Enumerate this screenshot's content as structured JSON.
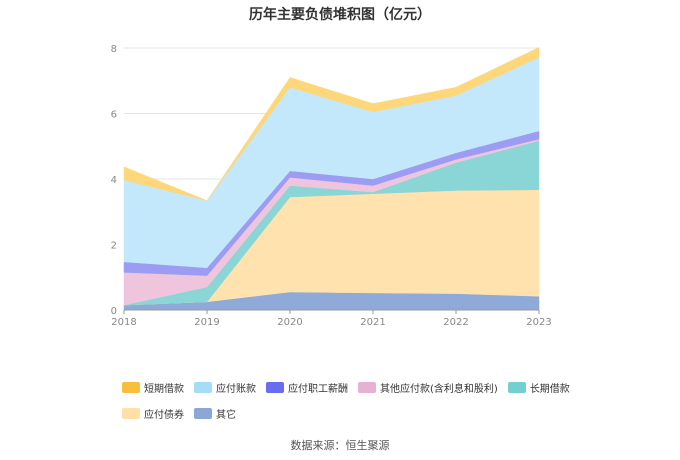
{
  "chart_data": {
    "type": "area",
    "stacked": true,
    "title": "历年主要负债堆积图（亿元）",
    "x": [
      "2018",
      "2019",
      "2020",
      "2021",
      "2022",
      "2023"
    ],
    "ylim": [
      0,
      8
    ],
    "yticks": [
      "0",
      "2",
      "4",
      "6",
      "8"
    ],
    "grid": true,
    "legend_position": "bottom",
    "series": [
      {
        "name": "其它",
        "color": "#8fa9d8",
        "values": [
          0.15,
          0.25,
          0.55,
          0.52,
          0.5,
          0.42
        ]
      },
      {
        "name": "应付债券",
        "color": "#ffe2ae",
        "values": [
          0,
          0,
          2.9,
          3.03,
          3.15,
          3.25
        ]
      },
      {
        "name": "长期借款",
        "color": "#8ad6d6",
        "values": [
          0,
          0.45,
          0.35,
          0.05,
          0.85,
          1.5
        ]
      },
      {
        "name": "其他应付款(含利息和股利)",
        "color": "#efc5dd",
        "values": [
          1.0,
          0.35,
          0.25,
          0.2,
          0.1,
          0.05
        ]
      },
      {
        "name": "应付职工薪酬",
        "color": "#9b9cf2",
        "values": [
          0.32,
          0.24,
          0.2,
          0.2,
          0.2,
          0.25
        ]
      },
      {
        "name": "应付账款",
        "color": "#c4e8fb",
        "values": [
          2.5,
          2.05,
          2.55,
          2.05,
          1.75,
          2.25
        ]
      },
      {
        "name": "短期借款",
        "color": "#fdd77a",
        "values": [
          0.4,
          0,
          0.3,
          0.25,
          0.25,
          0.3
        ]
      }
    ],
    "legend_order": [
      "短期借款",
      "应付账款",
      "应付职工薪酬",
      "其他应付款(含利息和股利)",
      "长期借款",
      "应付债券",
      "其它"
    ],
    "legend_colors": {
      "短期借款": "#f9bf3b",
      "应付账款": "#a7dcf7",
      "应付职工薪酬": "#6a6cf0",
      "其他应付款(含利息和股利)": "#e7b1d3",
      "长期借款": "#73cfd2",
      "应付债券": "#ffe0a6",
      "其它": "#8aa7d8"
    }
  },
  "footer": {
    "source": "数据来源：恒生聚源"
  }
}
